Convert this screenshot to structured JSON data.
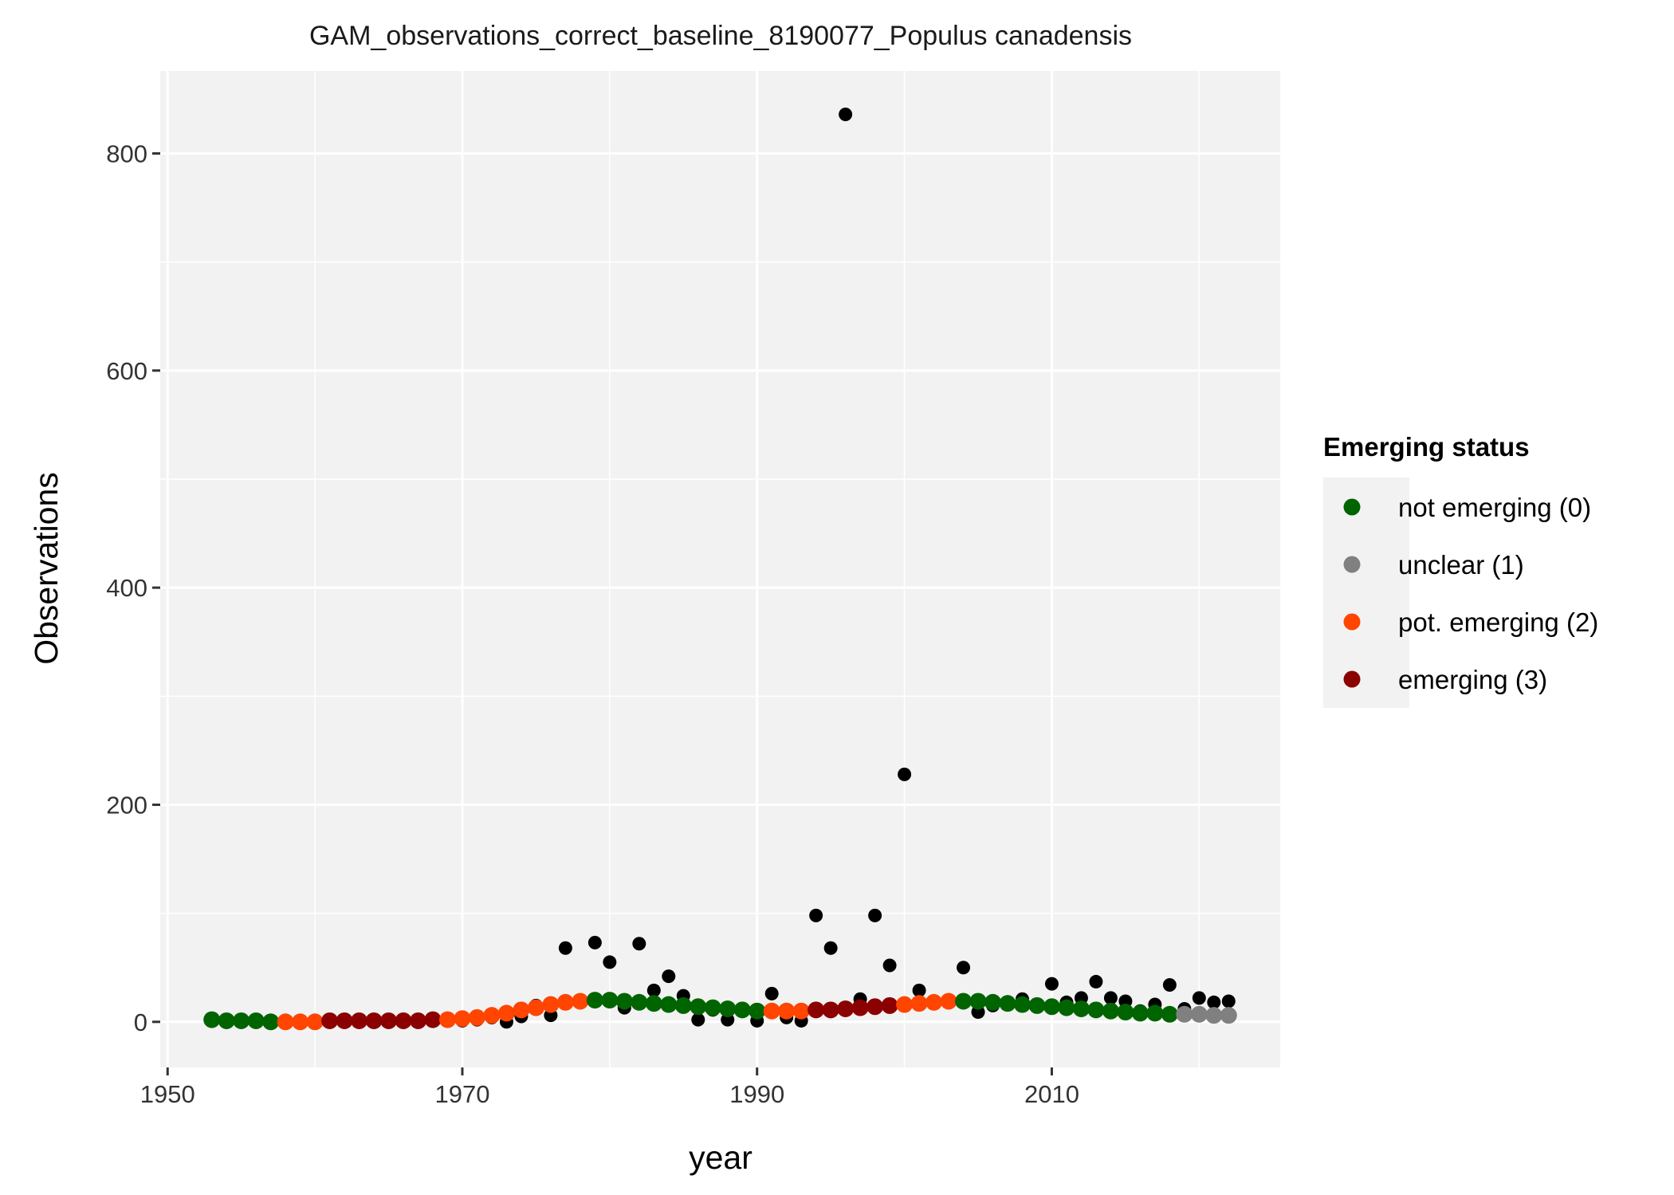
{
  "chart_data": {
    "type": "scatter",
    "title": "GAM_observations_correct_baseline_8190077_Populus canadensis",
    "xlabel": "year",
    "ylabel": "Observations",
    "xlim": [
      1949.5,
      2025.5
    ],
    "ylim": [
      -42,
      876
    ],
    "x_ticks": [
      1950,
      1970,
      1990,
      2010
    ],
    "x_tick_labels": [
      "1950",
      "1970",
      "1990",
      "2010"
    ],
    "y_ticks": [
      0,
      200,
      400,
      600,
      800
    ],
    "y_tick_labels": [
      "0",
      "200",
      "400",
      "600",
      "800"
    ],
    "grid": true,
    "panel_background": "#f2f2f2",
    "grid_color": "#ffffff",
    "legend": {
      "title": "Emerging status",
      "position": "right",
      "entries": [
        {
          "label": "not emerging (0)",
          "color": "#006400"
        },
        {
          "label": "unclear (1)",
          "color": "#808080"
        },
        {
          "label": "pot. emerging (2)",
          "color": "#ff4500"
        },
        {
          "label": "emerging (3)",
          "color": "#8b0000"
        }
      ]
    },
    "observed": {
      "color": "#000000",
      "points": [
        [
          1953,
          2
        ],
        [
          1954,
          1
        ],
        [
          1955,
          1
        ],
        [
          1956,
          0
        ],
        [
          1957,
          1
        ],
        [
          1958,
          0
        ],
        [
          1959,
          0
        ],
        [
          1960,
          1
        ],
        [
          1961,
          0
        ],
        [
          1962,
          1
        ],
        [
          1963,
          0
        ],
        [
          1964,
          1
        ],
        [
          1965,
          0
        ],
        [
          1966,
          1
        ],
        [
          1967,
          1
        ],
        [
          1968,
          2
        ],
        [
          1969,
          2
        ],
        [
          1970,
          1
        ],
        [
          1971,
          2
        ],
        [
          1972,
          4
        ],
        [
          1973,
          0
        ],
        [
          1974,
          5
        ],
        [
          1975,
          15
        ],
        [
          1976,
          6
        ],
        [
          1977,
          68
        ],
        [
          1978,
          19
        ],
        [
          1979,
          73
        ],
        [
          1980,
          55
        ],
        [
          1981,
          13
        ],
        [
          1982,
          72
        ],
        [
          1983,
          29
        ],
        [
          1984,
          42
        ],
        [
          1985,
          24
        ],
        [
          1986,
          2
        ],
        [
          1987,
          11
        ],
        [
          1988,
          2
        ],
        [
          1989,
          11
        ],
        [
          1990,
          1
        ],
        [
          1991,
          26
        ],
        [
          1992,
          4
        ],
        [
          1993,
          1
        ],
        [
          1994,
          98
        ],
        [
          1995,
          68
        ],
        [
          1996,
          836
        ],
        [
          1997,
          21
        ],
        [
          1998,
          98
        ],
        [
          1999,
          52
        ],
        [
          2000,
          228
        ],
        [
          2001,
          29
        ],
        [
          2002,
          17
        ],
        [
          2003,
          20
        ],
        [
          2004,
          50
        ],
        [
          2005,
          9
        ],
        [
          2006,
          15
        ],
        [
          2007,
          17
        ],
        [
          2008,
          21
        ],
        [
          2009,
          14
        ],
        [
          2010,
          35
        ],
        [
          2011,
          18
        ],
        [
          2012,
          22
        ],
        [
          2013,
          37
        ],
        [
          2014,
          22
        ],
        [
          2015,
          19
        ],
        [
          2016,
          10
        ],
        [
          2017,
          16
        ],
        [
          2018,
          34
        ],
        [
          2019,
          12
        ],
        [
          2020,
          22
        ],
        [
          2021,
          18
        ],
        [
          2022,
          19
        ]
      ]
    },
    "fitted": {
      "status_colors": [
        "#006400",
        "#808080",
        "#ff4500",
        "#8b0000"
      ],
      "points": [
        [
          1953,
          2,
          0
        ],
        [
          1954,
          1,
          0
        ],
        [
          1955,
          1,
          0
        ],
        [
          1956,
          1,
          0
        ],
        [
          1957,
          0,
          0
        ],
        [
          1958,
          0,
          2
        ],
        [
          1959,
          0,
          2
        ],
        [
          1960,
          0,
          2
        ],
        [
          1961,
          1,
          3
        ],
        [
          1962,
          1,
          3
        ],
        [
          1963,
          1,
          3
        ],
        [
          1964,
          1,
          3
        ],
        [
          1965,
          1,
          3
        ],
        [
          1966,
          1,
          3
        ],
        [
          1967,
          1,
          3
        ],
        [
          1968,
          2,
          3
        ],
        [
          1969,
          2,
          2
        ],
        [
          1970,
          3,
          2
        ],
        [
          1971,
          4,
          2
        ],
        [
          1972,
          6,
          2
        ],
        [
          1973,
          8,
          2
        ],
        [
          1974,
          11,
          2
        ],
        [
          1975,
          13,
          2
        ],
        [
          1976,
          16,
          2
        ],
        [
          1977,
          18,
          2
        ],
        [
          1978,
          19,
          2
        ],
        [
          1979,
          20,
          0
        ],
        [
          1980,
          20,
          0
        ],
        [
          1981,
          19,
          0
        ],
        [
          1982,
          18,
          0
        ],
        [
          1983,
          17,
          0
        ],
        [
          1984,
          16,
          0
        ],
        [
          1985,
          15,
          0
        ],
        [
          1986,
          14,
          0
        ],
        [
          1987,
          13,
          0
        ],
        [
          1988,
          12,
          0
        ],
        [
          1989,
          11,
          0
        ],
        [
          1990,
          10,
          0
        ],
        [
          1991,
          10,
          2
        ],
        [
          1992,
          10,
          2
        ],
        [
          1993,
          10,
          2
        ],
        [
          1994,
          11,
          3
        ],
        [
          1995,
          11,
          3
        ],
        [
          1996,
          12,
          3
        ],
        [
          1997,
          13,
          3
        ],
        [
          1998,
          14,
          3
        ],
        [
          1999,
          15,
          3
        ],
        [
          2000,
          16,
          2
        ],
        [
          2001,
          17,
          2
        ],
        [
          2002,
          18,
          2
        ],
        [
          2003,
          19,
          2
        ],
        [
          2004,
          19,
          0
        ],
        [
          2005,
          19,
          0
        ],
        [
          2006,
          18,
          0
        ],
        [
          2007,
          17,
          0
        ],
        [
          2008,
          16,
          0
        ],
        [
          2009,
          15,
          0
        ],
        [
          2010,
          14,
          0
        ],
        [
          2011,
          13,
          0
        ],
        [
          2012,
          12,
          0
        ],
        [
          2013,
          11,
          0
        ],
        [
          2014,
          10,
          0
        ],
        [
          2015,
          9,
          0
        ],
        [
          2016,
          8,
          0
        ],
        [
          2017,
          8,
          0
        ],
        [
          2018,
          7,
          0
        ],
        [
          2019,
          7,
          1
        ],
        [
          2020,
          7,
          1
        ],
        [
          2021,
          6,
          1
        ],
        [
          2022,
          6,
          1
        ]
      ]
    }
  }
}
